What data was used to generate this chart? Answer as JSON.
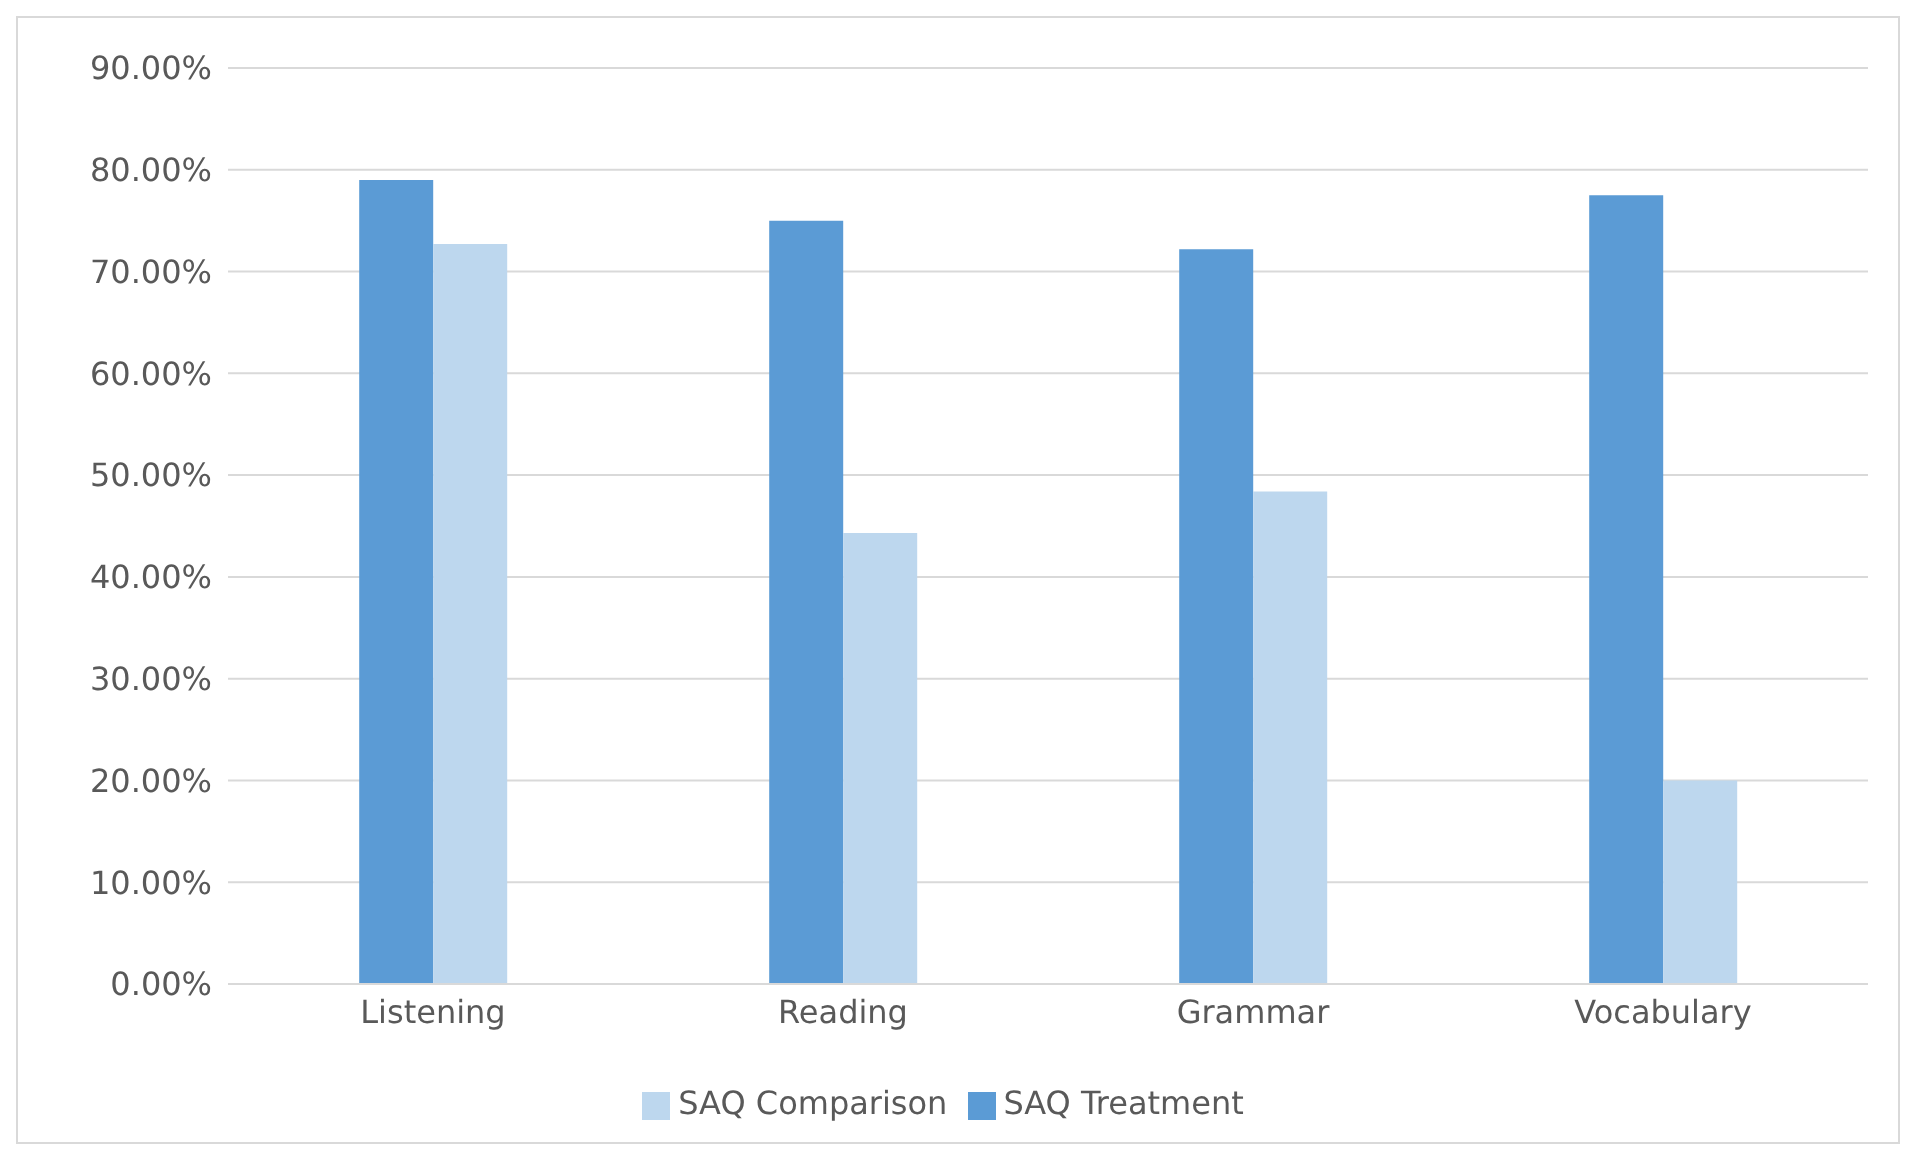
{
  "chart_data": {
    "type": "bar",
    "categories": [
      "Listening",
      "Reading",
      "Grammar",
      "Vocabulary"
    ],
    "series": [
      {
        "name": "SAQ Treatment",
        "color": "#5b9bd5",
        "values": [
          79.0,
          75.0,
          72.2,
          77.5
        ]
      },
      {
        "name": "SAQ Comparison",
        "color": "#bdd7ee",
        "values": [
          72.7,
          44.3,
          48.4,
          20.0
        ]
      }
    ],
    "ylim": [
      0,
      90
    ],
    "yticks": [
      {
        "value": 0,
        "label": "0.00%"
      },
      {
        "value": 10,
        "label": "10.00%"
      },
      {
        "value": 20,
        "label": "20.00%"
      },
      {
        "value": 30,
        "label": "30.00%"
      },
      {
        "value": 40,
        "label": "40.00%"
      },
      {
        "value": 50,
        "label": "50.00%"
      },
      {
        "value": 60,
        "label": "60.00%"
      },
      {
        "value": 70,
        "label": "70.00%"
      },
      {
        "value": 80,
        "label": "80.00%"
      },
      {
        "value": 90,
        "label": "90.00%"
      }
    ],
    "grid": "y",
    "legend": "bottom"
  }
}
